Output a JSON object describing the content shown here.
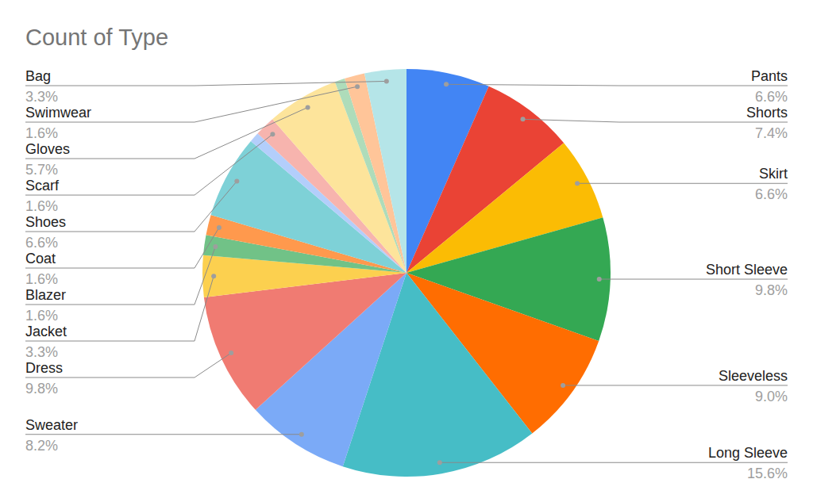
{
  "chart_data": {
    "type": "pie",
    "title": "Count of Type",
    "categories": [
      "Pants",
      "Shorts",
      "Skirt",
      "Short Sleeve",
      "Sleeveless",
      "Long Sleeve",
      "Sweater",
      "Dress",
      "Jacket",
      "Blazer",
      "Coat",
      "Shoes",
      null,
      "Scarf",
      "Gloves",
      null,
      "Swimwear",
      "Bag"
    ],
    "values": [
      6.6,
      7.4,
      6.6,
      9.8,
      9.0,
      15.6,
      8.2,
      9.8,
      3.3,
      1.6,
      1.6,
      6.6,
      0.8,
      1.6,
      5.7,
      0.8,
      1.6,
      3.3
    ],
    "value_labels": [
      "6.6%",
      "7.4%",
      "6.6%",
      "9.8%",
      "9.0%",
      "15.6%",
      "8.2%",
      "9.8%",
      "3.3%",
      "1.6%",
      "1.6%",
      "6.6%",
      null,
      "1.6%",
      "5.7%",
      null,
      "1.6%",
      "3.3%"
    ],
    "colors": [
      "#4285f4",
      "#ea4335",
      "#fbbc04",
      "#34a853",
      "#ff6d01",
      "#46bdc6",
      "#7baaf7",
      "#f07b72",
      "#fcd04f",
      "#71c287",
      "#ff994d",
      "#7ed1d7",
      "#b3cefb",
      "#f7b4ae",
      "#fde49b",
      "#aedcba",
      "#ffc599",
      "#b5e5e8"
    ],
    "data_labels": true
  }
}
